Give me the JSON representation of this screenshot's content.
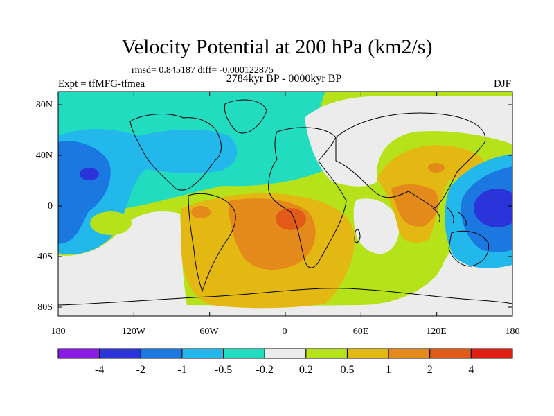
{
  "title": "Velocity Potential at 200 hPa (km2/s)",
  "stats": "rmsd= 0.845187 diff= -0.000122875",
  "experiment": "Expt = tfMFG-tfmea",
  "period": "2784kyr BP - 0000kyr BP",
  "season": "DJF",
  "lon_ticks": [
    "180",
    "120W",
    "60W",
    "0",
    "60E",
    "120E",
    "180"
  ],
  "lat_ticks": [
    "80N",
    "40N",
    "0",
    "40S",
    "80S"
  ],
  "colorbar": {
    "colors": [
      "#8a1be6",
      "#2a34d8",
      "#1a78e0",
      "#22b8ec",
      "#22dcc0",
      "#ececec",
      "#b6e21a",
      "#e4b812",
      "#e48a1a",
      "#e25a18",
      "#e01e14"
    ],
    "labels": [
      "-4",
      "-2",
      "-1",
      "-0.5",
      "-0.2",
      "0.2",
      "0.5",
      "1",
      "2",
      "4"
    ]
  }
}
